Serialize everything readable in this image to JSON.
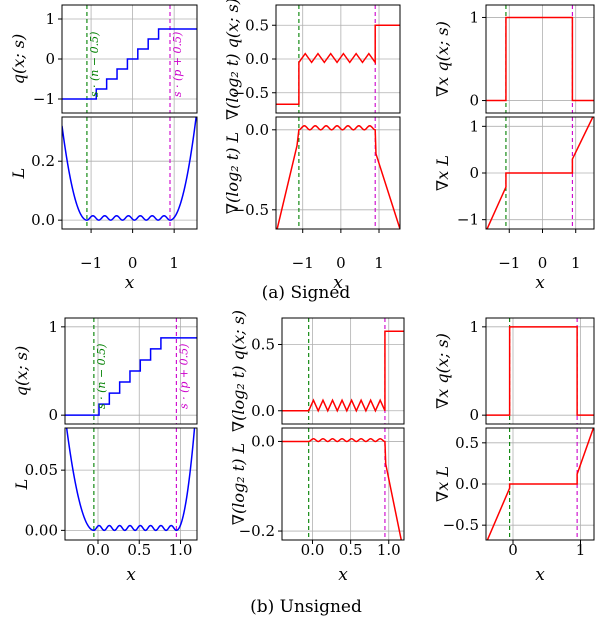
{
  "captions": {
    "signed": "(a) Signed",
    "unsigned": "(b) Unsigned"
  },
  "colors": {
    "blue": "#0000ff",
    "red": "#ff0000",
    "green": "#008000",
    "magenta": "#cc00cc",
    "grid": "#b0b0b0"
  },
  "chart_data": [
    {
      "group": "signed",
      "type": "line",
      "xlabel": "x",
      "x_ticks": [
        -1,
        0,
        1
      ],
      "vlines": {
        "green": -1.1,
        "magenta": 0.9
      },
      "xlim": [
        -1.7,
        1.55
      ],
      "panels": [
        {
          "id": "s-q",
          "ylabel": "q(x; s)",
          "ylim": [
            -1.35,
            1.35
          ],
          "y_ticks": [
            -1,
            0,
            1
          ],
          "y_tick_labels": [
            "−1",
            "0",
            "1"
          ],
          "color": "blue",
          "annotations": {
            "green": "s · (n − 0.5)",
            "magenta": "s · (p + 0.5)"
          },
          "curve": "q_signed",
          "params": {
            "s": 0.25,
            "n": -4,
            "p": 3
          }
        },
        {
          "id": "s-L",
          "ylabel": "L",
          "ylim": [
            -0.03,
            0.35
          ],
          "y_ticks": [
            0.0,
            0.2
          ],
          "y_tick_labels": [
            "0.0",
            "0.2"
          ],
          "color": "blue",
          "curve": "L_signed"
        },
        {
          "id": "s-gtq",
          "ylabel": "∇(log₂ t) q(x; s)",
          "ylim": [
            -0.8,
            0.8
          ],
          "y_ticks": [
            -0.5,
            0.0,
            0.5
          ],
          "y_tick_labels": [
            "−0.5",
            "0.0",
            "0.5"
          ],
          "color": "red",
          "curve": "gt_q_signed"
        },
        {
          "id": "s-gtL",
          "ylabel": "∇(log₂ t) L",
          "ylim": [
            -0.62,
            0.08
          ],
          "y_ticks": [
            -0.5,
            0.0
          ],
          "y_tick_labels": [
            "−0.5",
            "0.0"
          ],
          "color": "red",
          "curve": "gt_L_signed"
        },
        {
          "id": "s-gxq",
          "ylabel": "∇x q(x; s)",
          "ylim": [
            -0.15,
            1.15
          ],
          "y_ticks": [
            0,
            1
          ],
          "y_tick_labels": [
            "0",
            "1"
          ],
          "color": "red",
          "curve": "gx_q_signed"
        },
        {
          "id": "s-gxL",
          "ylabel": "∇x L",
          "ylim": [
            -1.2,
            1.2
          ],
          "y_ticks": [
            -1,
            0,
            1
          ],
          "y_tick_labels": [
            "−1",
            "0",
            "1"
          ],
          "color": "red",
          "curve": "gx_L_signed"
        }
      ]
    },
    {
      "group": "unsigned",
      "type": "line",
      "xlabel": "x",
      "x_ticks": [
        0,
        0.5,
        1.0
      ],
      "x_tick_labels_left": [
        "0.0",
        "0.5",
        "1.0"
      ],
      "x_tick_labels_mid": [
        "0.0",
        "0.5",
        "1.0"
      ],
      "x_tick_labels_right": [
        "0",
        "1"
      ],
      "x_ticks_right": [
        0,
        1
      ],
      "vlines": {
        "green": -0.05,
        "magenta": 0.95
      },
      "xlim": [
        -0.4,
        1.2
      ],
      "panels": [
        {
          "id": "u-q",
          "ylabel": "q(x; s)",
          "ylim": [
            -0.1,
            1.1
          ],
          "y_ticks": [
            0,
            1
          ],
          "y_tick_labels": [
            "0",
            "1"
          ],
          "color": "blue",
          "annotations": {
            "green": "s · (n − 0.5)",
            "magenta": "s · (p + 0.5)"
          },
          "curve": "q_unsigned",
          "params": {
            "s": 0.125,
            "n": 0,
            "p": 7
          }
        },
        {
          "id": "u-L",
          "ylabel": "L",
          "ylim": [
            -0.008,
            0.085
          ],
          "y_ticks": [
            0.0,
            0.05
          ],
          "y_tick_labels": [
            "0.00",
            "0.05"
          ],
          "color": "blue",
          "curve": "L_unsigned"
        },
        {
          "id": "u-gtq",
          "ylabel": "∇(log₂ t) q(x; s)",
          "ylim": [
            -0.1,
            0.7
          ],
          "y_ticks": [
            0.0,
            0.5
          ],
          "y_tick_labels": [
            "0.0",
            "0.5"
          ],
          "color": "red",
          "curve": "gt_q_unsigned"
        },
        {
          "id": "u-gtL",
          "ylabel": "∇(log₂ t) L",
          "ylim": [
            -0.22,
            0.03
          ],
          "y_ticks": [
            -0.2,
            0.0
          ],
          "y_tick_labels": [
            "−0.2",
            "0.0"
          ],
          "color": "red",
          "curve": "gt_L_unsigned"
        },
        {
          "id": "u-gxq",
          "ylabel": "∇x q(x; s)",
          "ylim": [
            -0.1,
            1.1
          ],
          "y_ticks": [
            0,
            1
          ],
          "y_tick_labels": [
            "0",
            "1"
          ],
          "color": "red",
          "curve": "gx_q_unsigned"
        },
        {
          "id": "u-gxL",
          "ylabel": "∇x L",
          "ylim": [
            -0.68,
            0.68
          ],
          "y_ticks": [
            -0.5,
            0.0,
            0.5
          ],
          "y_tick_labels": [
            "−0.5",
            "0.0",
            "0.5"
          ],
          "color": "red",
          "curve": "gx_L_unsigned"
        }
      ]
    }
  ]
}
